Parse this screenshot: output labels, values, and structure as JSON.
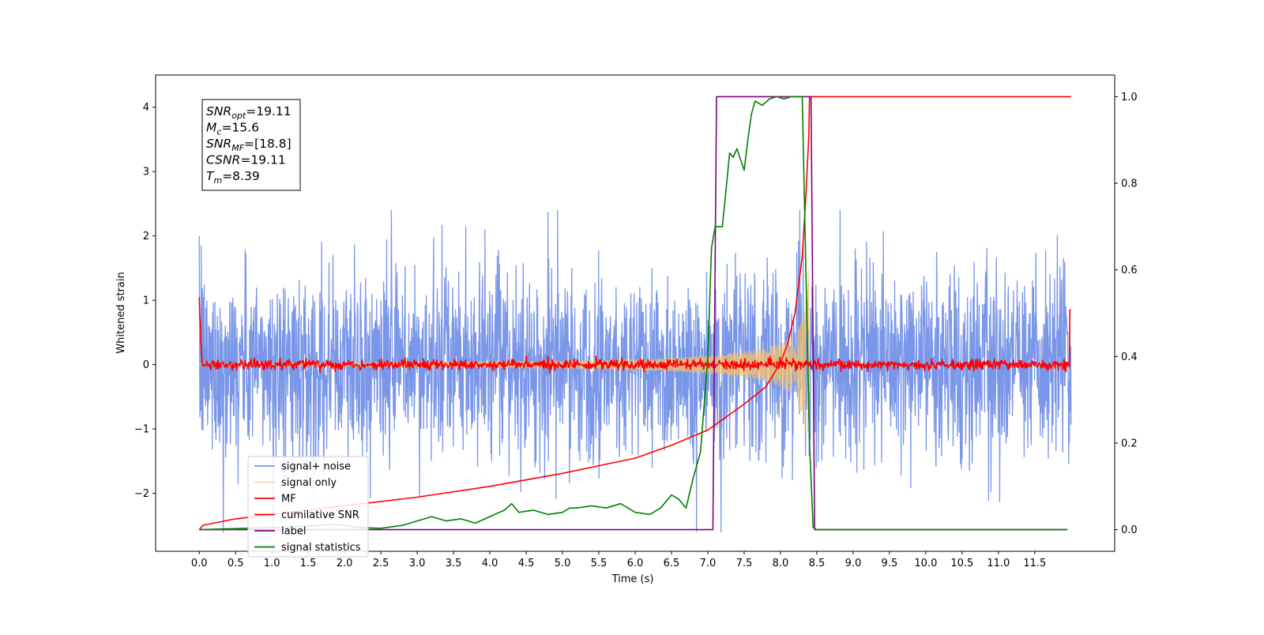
{
  "chart_data": {
    "type": "line",
    "title": "",
    "xlabel": "Time (s)",
    "ylabel": "Whitened strain",
    "y2label": "",
    "xlim": [
      -0.6,
      12.6
    ],
    "ylim": [
      -2.9,
      4.5
    ],
    "y2lim": [
      -0.05,
      1.05
    ],
    "x_ticks": [
      0.0,
      0.5,
      1.0,
      1.5,
      2.0,
      2.5,
      3.0,
      3.5,
      4.0,
      4.5,
      5.0,
      5.5,
      6.0,
      6.5,
      7.0,
      7.5,
      8.0,
      8.5,
      9.0,
      9.5,
      10.0,
      10.5,
      11.0,
      11.5
    ],
    "x_tick_labels": [
      "0.0",
      "0.5",
      "1.0",
      "1.5",
      "2.0",
      "2.5",
      "3.0",
      "3.5",
      "4.0",
      "4.5",
      "5.0",
      "5.5",
      "6.0",
      "6.5",
      "7.0",
      "7.5",
      "8.0",
      "8.5",
      "9.0",
      "9.5",
      "10.0",
      "10.5",
      "11.0",
      "11.5"
    ],
    "y_ticks": [
      -2,
      -1,
      0,
      1,
      2,
      3,
      4
    ],
    "y_tick_labels": [
      "−2",
      "−1",
      "0",
      "1",
      "2",
      "3",
      "4"
    ],
    "y2_ticks": [
      0.0,
      0.2,
      0.4,
      0.6,
      0.8,
      1.0
    ],
    "y2_tick_labels": [
      "0.0",
      "0.2",
      "0.4",
      "0.6",
      "0.8",
      "1.0"
    ],
    "grid": false,
    "legend_position": "lower-left",
    "annotation": {
      "lines": [
        {
          "base": "SNR",
          "sub": "opt",
          "rest": "=19.11"
        },
        {
          "base": "M",
          "sub": "c",
          "rest": "=15.6"
        },
        {
          "base": "SNR",
          "sub": "MF",
          "rest": "=[18.8]"
        },
        {
          "base": "CSNR",
          "sub": "",
          "rest": "=19.11"
        },
        {
          "base": "T",
          "sub": "m",
          "rest": "=8.39"
        }
      ]
    },
    "series": [
      {
        "name": "signal+ noise",
        "axis": "left",
        "color": "#7a96e8",
        "kind": "noise",
        "x_range": [
          0.0,
          12.0
        ],
        "amplitude_range": [
          -2.6,
          2.4
        ]
      },
      {
        "name": "signal only",
        "axis": "left",
        "color": "#f5c26b",
        "kind": "chirp",
        "x_range": [
          0.0,
          8.39
        ],
        "envelope": {
          "x": [
            0.0,
            2.0,
            4.0,
            5.0,
            6.0,
            6.5,
            7.0,
            7.5,
            7.8,
            8.0,
            8.15,
            8.25,
            8.3,
            8.35,
            8.39
          ],
          "y": [
            0.02,
            0.03,
            0.05,
            0.06,
            0.08,
            0.1,
            0.14,
            0.2,
            0.26,
            0.34,
            0.44,
            0.6,
            0.8,
            1.1,
            1.5
          ]
        }
      },
      {
        "name": "MF",
        "axis": "left",
        "color": "#ff0000",
        "kind": "mf",
        "x_range": [
          0.0,
          12.0
        ],
        "start_value": 1.0,
        "end_value": 0.85
      },
      {
        "name": "cumilative SNR",
        "axis": "right",
        "color": "#ff0000",
        "kind": "line",
        "x": [
          0.0,
          0.05,
          0.5,
          1.0,
          2.0,
          3.0,
          4.0,
          5.0,
          6.0,
          6.5,
          7.0,
          7.5,
          7.8,
          8.0,
          8.1,
          8.2,
          8.3,
          8.35,
          8.39,
          8.4,
          12.0
        ],
        "y": [
          0.0,
          0.01,
          0.025,
          0.035,
          0.055,
          0.075,
          0.1,
          0.13,
          0.165,
          0.195,
          0.23,
          0.29,
          0.33,
          0.385,
          0.43,
          0.5,
          0.63,
          0.77,
          0.91,
          1.0,
          1.0
        ]
      },
      {
        "name": "label",
        "axis": "right",
        "color": "#800080",
        "kind": "line",
        "x": [
          0.0,
          7.07,
          7.12,
          8.42,
          8.47,
          11.95
        ],
        "y": [
          0.0,
          0.0,
          1.0,
          1.0,
          0.0,
          0.0
        ]
      },
      {
        "name": "signal statistics",
        "axis": "right",
        "color": "#008000",
        "kind": "line",
        "x": [
          0.0,
          1.0,
          1.5,
          1.8,
          2.0,
          2.2,
          2.5,
          2.8,
          3.0,
          3.2,
          3.4,
          3.6,
          3.8,
          4.0,
          4.2,
          4.3,
          4.4,
          4.6,
          4.8,
          5.0,
          5.1,
          5.2,
          5.4,
          5.6,
          5.8,
          6.0,
          6.2,
          6.35,
          6.5,
          6.6,
          6.7,
          6.8,
          6.9,
          7.0,
          7.05,
          7.1,
          7.2,
          7.3,
          7.35,
          7.4,
          7.5,
          7.55,
          7.6,
          7.65,
          7.75,
          7.85,
          7.95,
          8.05,
          8.15,
          8.25,
          8.3,
          8.35,
          8.4,
          8.45,
          8.5,
          11.95
        ],
        "y": [
          0.0,
          0.005,
          0.008,
          0.012,
          0.01,
          0.005,
          0.003,
          0.01,
          0.02,
          0.03,
          0.02,
          0.025,
          0.015,
          0.03,
          0.045,
          0.06,
          0.04,
          0.045,
          0.035,
          0.04,
          0.05,
          0.05,
          0.055,
          0.05,
          0.06,
          0.04,
          0.035,
          0.05,
          0.08,
          0.07,
          0.05,
          0.12,
          0.18,
          0.4,
          0.65,
          0.7,
          0.7,
          0.87,
          0.86,
          0.88,
          0.83,
          0.9,
          0.96,
          0.99,
          0.98,
          0.995,
          1.0,
          0.995,
          1.0,
          1.0,
          1.0,
          0.6,
          0.2,
          0.005,
          0.0,
          0.0
        ]
      }
    ]
  }
}
